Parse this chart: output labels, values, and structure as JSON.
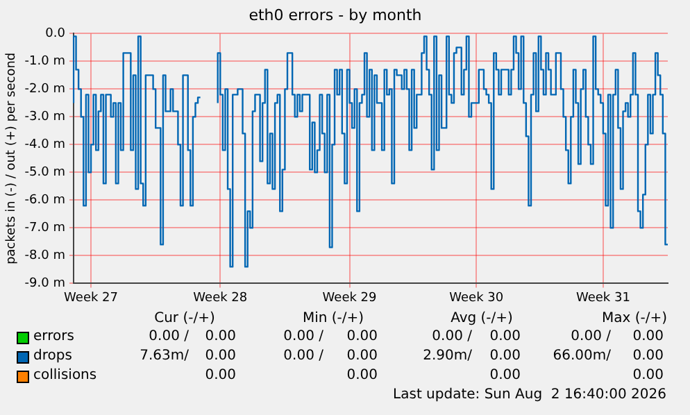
{
  "chart_data": {
    "type": "step",
    "title": "eth0 errors - by month",
    "ylabel": "packets in (-) / out (+) per second",
    "categories": [
      null,
      null,
      null,
      null,
      null,
      null,
      null,
      "Week 27",
      null,
      null,
      null,
      null,
      null,
      null,
      null,
      null,
      null,
      null,
      null,
      null,
      null,
      null,
      null,
      null,
      null,
      null,
      null,
      null,
      null,
      null,
      null,
      null,
      null,
      null,
      null,
      null,
      null,
      null,
      null,
      null,
      null,
      null,
      null,
      null,
      null,
      null,
      null,
      null,
      null,
      null,
      null,
      null,
      null,
      null,
      null,
      null,
      null,
      null,
      null,
      "Week 28",
      null,
      null,
      null,
      null,
      null,
      null,
      null,
      null,
      null,
      null,
      null,
      null,
      null,
      null,
      null,
      null,
      null,
      null,
      null,
      null,
      null,
      null,
      null,
      null,
      null,
      null,
      null,
      null,
      null,
      null,
      null,
      null,
      null,
      null,
      null,
      null,
      null,
      null,
      null,
      null,
      null,
      null,
      null,
      null,
      null,
      null,
      null,
      null,
      null,
      null,
      null,
      "Week 29",
      null,
      null,
      null,
      null,
      null,
      null,
      null,
      null,
      null,
      null,
      null,
      null,
      null,
      null,
      null,
      null,
      null,
      null,
      null,
      null,
      null,
      null,
      null,
      null,
      null,
      null,
      null,
      null,
      null,
      null,
      null,
      null,
      null,
      null,
      null,
      null,
      null,
      null,
      null,
      null,
      null,
      null,
      null,
      null,
      null,
      null,
      null,
      null,
      null,
      null,
      "Week 30",
      null,
      null,
      null,
      null,
      null,
      null,
      null,
      null,
      null,
      null,
      null,
      null,
      null,
      null,
      null,
      null,
      null,
      null,
      null,
      null,
      null,
      null,
      null,
      null,
      null,
      null,
      null,
      null,
      null,
      null,
      null,
      null,
      null,
      null,
      null,
      null,
      null,
      null,
      null,
      null,
      null,
      null,
      null,
      null,
      null,
      null,
      null,
      null,
      null,
      null,
      "Week 31",
      null,
      null,
      null,
      null,
      null,
      null,
      null,
      null,
      null,
      null,
      null,
      null,
      null,
      null,
      null,
      null,
      null,
      null,
      null,
      null,
      null,
      null,
      null,
      null,
      null,
      null
    ],
    "ylim": [
      -9,
      0
    ],
    "yticks": [
      {
        "value": 0,
        "label": "0.0"
      },
      {
        "value": -1,
        "label": "-1.0 m"
      },
      {
        "value": -2,
        "label": "-2.0 m"
      },
      {
        "value": -3,
        "label": "-3.0 m"
      },
      {
        "value": -4,
        "label": "-4.0 m"
      },
      {
        "value": -5,
        "label": "-5.0 m"
      },
      {
        "value": -6,
        "label": "-6.0 m"
      },
      {
        "value": -7,
        "label": "-7.0 m"
      },
      {
        "value": -8,
        "label": "-8.0 m"
      },
      {
        "value": -9,
        "label": "-9.0 m"
      }
    ],
    "grid": true,
    "legend": "bottom",
    "series": [
      {
        "name": "errors",
        "color": "#00cc00",
        "values": [
          null,
          null,
          null,
          null,
          null,
          null,
          null,
          null,
          null,
          null,
          null,
          null,
          null,
          null,
          null,
          null,
          null,
          null,
          null,
          null,
          null,
          null,
          null,
          null,
          null,
          null,
          null,
          null,
          null,
          null,
          null,
          null,
          null,
          null,
          null,
          null,
          null,
          null,
          null,
          null,
          null,
          null,
          null,
          null,
          null,
          null,
          null,
          null,
          null,
          null,
          null,
          null,
          null,
          null,
          null,
          null,
          null,
          null,
          null,
          null,
          null,
          null,
          null,
          null,
          null,
          null,
          null,
          null,
          null,
          null,
          null,
          null,
          null,
          null,
          null,
          null,
          null,
          null,
          null,
          null,
          null,
          null,
          null,
          null,
          null,
          null,
          null,
          null,
          null,
          null,
          null,
          null,
          null,
          null,
          null,
          null,
          null,
          null,
          null,
          null,
          null,
          null,
          null,
          null,
          null,
          null,
          null,
          null,
          null,
          null,
          null,
          null,
          null,
          null,
          null,
          null,
          null,
          null,
          null,
          null,
          null,
          null,
          null,
          null,
          null,
          null,
          null,
          null,
          null,
          null,
          null,
          null,
          null,
          null,
          null,
          null,
          null,
          null,
          null,
          null,
          null,
          null,
          null,
          null,
          null,
          null,
          null,
          null,
          null,
          null,
          null,
          null,
          null,
          null,
          null,
          null,
          null,
          null,
          null,
          null,
          null,
          null,
          null,
          null,
          null,
          null,
          null,
          null,
          null,
          null,
          null,
          null,
          null,
          null,
          null,
          null,
          null,
          null,
          null,
          null,
          null,
          null,
          null,
          null,
          null,
          null,
          null,
          null,
          null,
          null,
          null,
          null,
          null,
          null,
          null,
          null,
          null,
          null,
          null,
          null,
          null,
          null,
          null,
          null,
          null,
          null,
          null,
          null,
          null,
          null,
          null,
          null,
          null,
          null,
          null,
          null,
          null,
          null,
          null,
          null,
          null,
          null,
          null,
          null,
          null,
          null,
          null,
          null,
          null,
          null,
          null,
          null,
          null,
          null,
          null,
          null,
          null,
          null,
          null,
          null
        ]
      },
      {
        "name": "drops",
        "color": "#0066b3",
        "values": [
          -2.5,
          -0.1,
          -1.3,
          -2.0,
          -3.0,
          -6.2,
          -2.2,
          -5.0,
          -4.0,
          -2.2,
          -4.2,
          -2.8,
          -2.2,
          -5.4,
          -2.2,
          -2.2,
          -3.0,
          -2.5,
          -5.4,
          -2.5,
          -4.2,
          -0.7,
          -0.7,
          -0.7,
          -4.2,
          -1.5,
          -5.6,
          -0.1,
          -5.4,
          -6.2,
          -1.5,
          -1.5,
          -1.5,
          -2.0,
          -3.4,
          -3.4,
          -7.6,
          -1.5,
          -2.8,
          -2.8,
          -2.0,
          -2.8,
          -2.8,
          -4.0,
          -6.2,
          -1.5,
          -1.5,
          -4.2,
          -6.2,
          -3.0,
          -2.5,
          -2.3,
          null,
          null,
          null,
          null,
          null,
          null,
          -2.5,
          -0.7,
          -2.2,
          -4.2,
          -2.0,
          -5.6,
          -8.4,
          -2.2,
          -2.2,
          -2.0,
          -2.0,
          -3.6,
          -8.4,
          -6.4,
          -7.0,
          -2.8,
          -2.2,
          -2.2,
          -4.6,
          -2.5,
          -1.3,
          -5.4,
          -3.6,
          -5.6,
          -2.5,
          -2.2,
          -6.4,
          -4.9,
          -2.0,
          -0.7,
          -0.7,
          -2.2,
          -3.0,
          -2.2,
          -2.8,
          -2.2,
          -2.2,
          -2.2,
          -4.9,
          -3.2,
          -5.0,
          -4.2,
          -2.2,
          -3.6,
          -5.0,
          -2.2,
          -7.7,
          -4.0,
          -1.3,
          -2.2,
          -1.3,
          -3.6,
          -5.4,
          -1.3,
          -2.5,
          -3.4,
          -2.0,
          -6.4,
          -2.5,
          -2.2,
          -0.7,
          -3.0,
          -1.3,
          -4.2,
          -1.5,
          -2.5,
          -2.5,
          -4.2,
          -1.3,
          -2.2,
          -2.0,
          -5.4,
          -1.3,
          -1.5,
          -1.5,
          -2.0,
          -1.3,
          -2.0,
          -4.2,
          -1.3,
          -3.4,
          -2.2,
          -2.2,
          -0.7,
          -0.1,
          -1.3,
          -2.2,
          -4.9,
          -0.1,
          -4.2,
          -1.5,
          -3.4,
          -3.4,
          -0.1,
          -2.2,
          -2.5,
          -0.7,
          -0.5,
          -0.5,
          -2.2,
          -1.3,
          -0.1,
          -3.0,
          -2.5,
          -2.5,
          -2.5,
          -1.3,
          -1.3,
          -2.0,
          -2.2,
          -2.5,
          -5.6,
          -0.7,
          -1.3,
          -2.2,
          -1.3,
          -1.3,
          -1.3,
          -2.2,
          -1.3,
          -0.1,
          -0.7,
          -2.0,
          -0.1,
          -2.5,
          -3.7,
          -6.2,
          -2.2,
          -0.7,
          -2.8,
          -0.1,
          -1.3,
          -2.2,
          -0.7,
          -1.3,
          -2.2,
          -2.2,
          -0.7,
          -0.7,
          -2.0,
          -3.0,
          -4.2,
          -5.4,
          -3.0,
          -1.3,
          -2.5,
          -4.7,
          -2.0,
          -1.3,
          -3.0,
          -4.0,
          -4.7,
          -0.1,
          -2.0,
          -2.2,
          -2.5,
          -3.6,
          -6.2,
          -2.2,
          -7.0,
          -2.2,
          -1.3,
          -3.4,
          -5.6,
          -2.8,
          -2.5,
          -3.0,
          -2.2,
          -0.7,
          -2.2,
          -6.4,
          -7.0,
          -5.8,
          -4.0,
          -2.2,
          -3.6,
          -2.2,
          -0.7,
          -1.5,
          -2.2,
          -3.6,
          -7.6
        ]
      },
      {
        "name": "collisions",
        "color": "#ff8000",
        "values": [
          null,
          null,
          null,
          null,
          null,
          null,
          null,
          null,
          null,
          null,
          null,
          null,
          null,
          null,
          null,
          null,
          null,
          null,
          null,
          null,
          null,
          null,
          null,
          null,
          null,
          null,
          null,
          null,
          null,
          null,
          null,
          null,
          null,
          null,
          null,
          null,
          null,
          null,
          null,
          null,
          null,
          null,
          null,
          null,
          null,
          null,
          null,
          null,
          null,
          null,
          null,
          null,
          null,
          null,
          null,
          null,
          null,
          null,
          null,
          null,
          null,
          null,
          null,
          null,
          null,
          null,
          null,
          null,
          null,
          null,
          null,
          null,
          null,
          null,
          null,
          null,
          null,
          null,
          null,
          null,
          null,
          null,
          null,
          null,
          null,
          null,
          null,
          null,
          null,
          null,
          null,
          null,
          null,
          null,
          null,
          null,
          null,
          null,
          null,
          null,
          null,
          null,
          null,
          null,
          null,
          null,
          null,
          null,
          null,
          null,
          null,
          null,
          null,
          null,
          null,
          null,
          null,
          null,
          null,
          null,
          null,
          null,
          null,
          null,
          null,
          null,
          null,
          null,
          null,
          null,
          null,
          null,
          null,
          null,
          null,
          null,
          null,
          null,
          null,
          null,
          null,
          null,
          null,
          null,
          null,
          null,
          null,
          null,
          null,
          null,
          null,
          null,
          null,
          null,
          null,
          null,
          null,
          null,
          null,
          null,
          null,
          null,
          null,
          null,
          null,
          null,
          null,
          null,
          null,
          null,
          null,
          null,
          null,
          null,
          null,
          null,
          null,
          null,
          null,
          null,
          null,
          null,
          null,
          null,
          null,
          null,
          null,
          null,
          null,
          null,
          null,
          null,
          null,
          null,
          null,
          null,
          null,
          null,
          null,
          null,
          null,
          null,
          null,
          null,
          null,
          null,
          null,
          null,
          null,
          null,
          null,
          null,
          null,
          null,
          null,
          null,
          null,
          null,
          null,
          null,
          null,
          null,
          null,
          null,
          null,
          null,
          null,
          null,
          null,
          null,
          null,
          null,
          null,
          null,
          null,
          null,
          null,
          null,
          null,
          null
        ]
      }
    ],
    "annotations": [
      "Cur (-/+)",
      "Min (-/+)",
      "Avg (-/+)",
      "Max (-/+)",
      "0.00 /",
      "0.00",
      "0.00 /",
      "0.00",
      "0.00 /",
      "0.00",
      "0.00 /",
      "0.00",
      "7.63m/",
      "0.00",
      "0.00 /",
      "0.00",
      "2.90m/",
      "0.00",
      "66.00m/",
      "0.00",
      "0.00",
      "0.00",
      "0.00",
      "0.00",
      "Last update: Sun Aug  2 16:40:00 2026"
    ]
  }
}
